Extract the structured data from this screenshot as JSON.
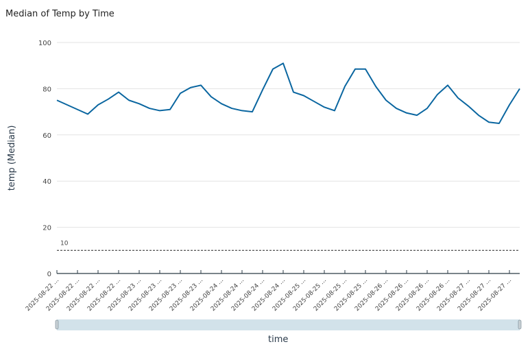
{
  "chart_data": {
    "type": "line",
    "title": "Median of Temp by Time",
    "xlabel": "time",
    "ylabel": "temp (Median)",
    "ylim": [
      0,
      100
    ],
    "y_ticks": [
      0,
      20,
      40,
      60,
      80,
      100
    ],
    "grid": true,
    "x_tick_labels": [
      "2025-08-22 ...",
      "2025-08-22 ...",
      "2025-08-22 ...",
      "2025-08-22 ...",
      "2025-08-23 ...",
      "2025-08-23 ...",
      "2025-08-23 ...",
      "2025-08-23 ...",
      "2025-08-24 ...",
      "2025-08-24 ...",
      "2025-08-24 ...",
      "2025-08-24 ...",
      "2025-08-25 ...",
      "2025-08-25 ...",
      "2025-08-25 ...",
      "2025-08-25 ...",
      "2025-08-26 ...",
      "2025-08-26 ...",
      "2025-08-26 ...",
      "2025-08-26 ...",
      "2025-08-27 ...",
      "2025-08-27 ...",
      "2025-08-27 ..."
    ],
    "series": [
      {
        "color": "#0a66a0",
        "values": [
          75,
          73,
          71,
          69,
          73,
          75.5,
          78.5,
          75,
          73.5,
          71.5,
          70.5,
          71,
          78,
          80.5,
          81.5,
          76.5,
          73.5,
          71.5,
          70.5,
          70,
          79.5,
          88.5,
          91,
          78.5,
          77,
          74.5,
          72,
          70.5,
          81,
          88.5,
          88.5,
          81,
          75,
          71.5,
          69.5,
          68.5,
          71.5,
          77.5,
          81.5,
          76,
          72.5,
          68.5,
          65.5,
          65,
          73,
          80
        ]
      }
    ],
    "reference_line": {
      "value": 10,
      "label": "10",
      "style": "dashed"
    },
    "range_slider": {
      "start": 0,
      "end": 1,
      "color": "#d2e2ea"
    }
  }
}
